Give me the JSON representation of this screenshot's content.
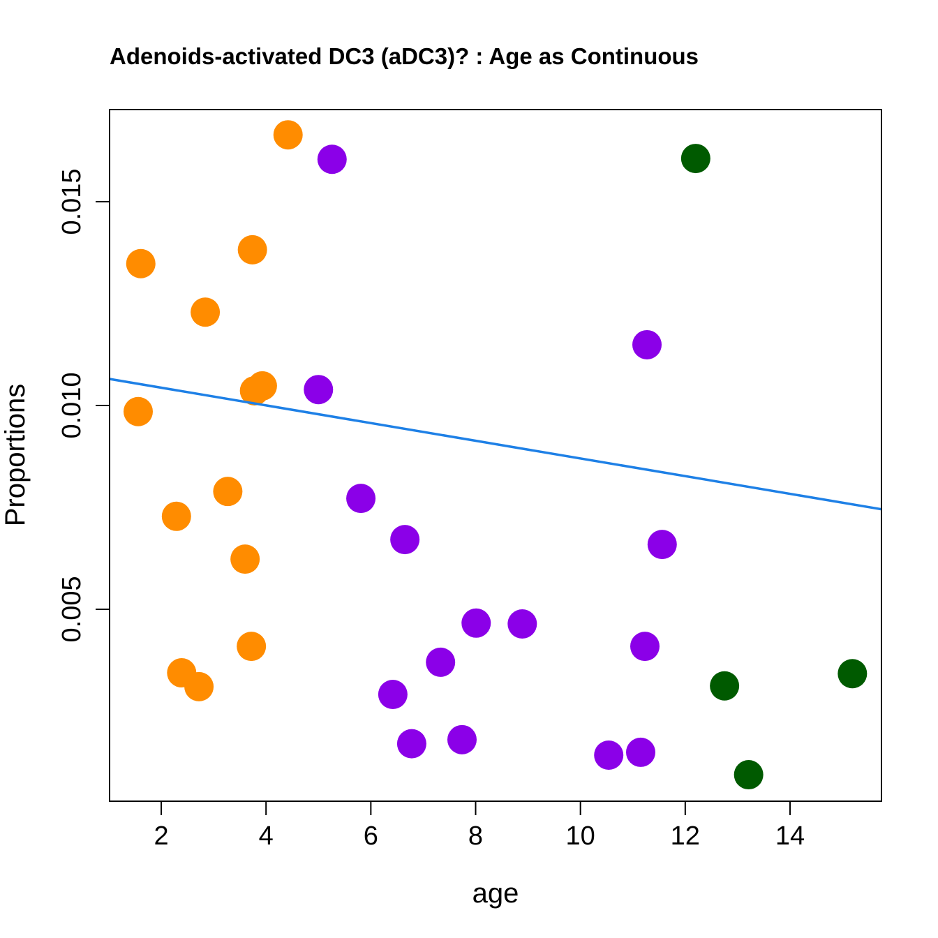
{
  "chart_data": {
    "type": "scatter",
    "title": "Adenoids-activated DC3 (aDC3)? : Age as Continuous",
    "xlabel": "age",
    "ylabel": "Proportions",
    "xlim": [
      1.014,
      15.745
    ],
    "ylim": [
      0.00029,
      0.01726
    ],
    "xticks": [
      2,
      4,
      6,
      8,
      10,
      12,
      14
    ],
    "xtick_labels": [
      "2",
      "4",
      "6",
      "8",
      "10",
      "12",
      "14"
    ],
    "yticks": [
      0.005,
      0.01,
      0.015
    ],
    "ytick_labels": [
      "0.005",
      "0.010",
      "0.015"
    ],
    "grid": false,
    "series": [
      {
        "name": "group-orange",
        "color": "#FF8C00",
        "points": [
          [
            4.42,
            0.01664
          ],
          [
            1.61,
            0.01348
          ],
          [
            3.74,
            0.01382
          ],
          [
            2.84,
            0.01229
          ],
          [
            3.93,
            0.01048
          ],
          [
            3.78,
            0.01036
          ],
          [
            1.56,
            0.00985
          ],
          [
            3.27,
            0.00789
          ],
          [
            2.29,
            0.00728
          ],
          [
            3.6,
            0.00623
          ],
          [
            3.72,
            0.00409
          ],
          [
            2.39,
            0.00344
          ],
          [
            2.72,
            0.0031
          ]
        ]
      },
      {
        "name": "group-purple",
        "color": "#8B00E8",
        "points": [
          [
            5.26,
            0.01604
          ],
          [
            11.27,
            0.01149
          ],
          [
            5.0,
            0.01039
          ],
          [
            5.81,
            0.00772
          ],
          [
            6.65,
            0.00671
          ],
          [
            11.56,
            0.00659
          ],
          [
            8.01,
            0.00466
          ],
          [
            8.89,
            0.00464
          ],
          [
            11.23,
            0.00409
          ],
          [
            7.33,
            0.0037
          ],
          [
            6.42,
            0.00291
          ],
          [
            6.78,
            0.0017
          ],
          [
            7.74,
            0.0018
          ],
          [
            10.54,
            0.00142
          ],
          [
            11.15,
            0.00149
          ]
        ]
      },
      {
        "name": "group-green",
        "color": "#005A00",
        "points": [
          [
            12.2,
            0.01606
          ],
          [
            12.75,
            0.00312
          ],
          [
            15.19,
            0.00342
          ],
          [
            13.21,
            0.00094
          ]
        ]
      }
    ],
    "fit_line": {
      "intercept": 0.01087,
      "slope": -0.000217,
      "color": "#1E80E6"
    }
  }
}
